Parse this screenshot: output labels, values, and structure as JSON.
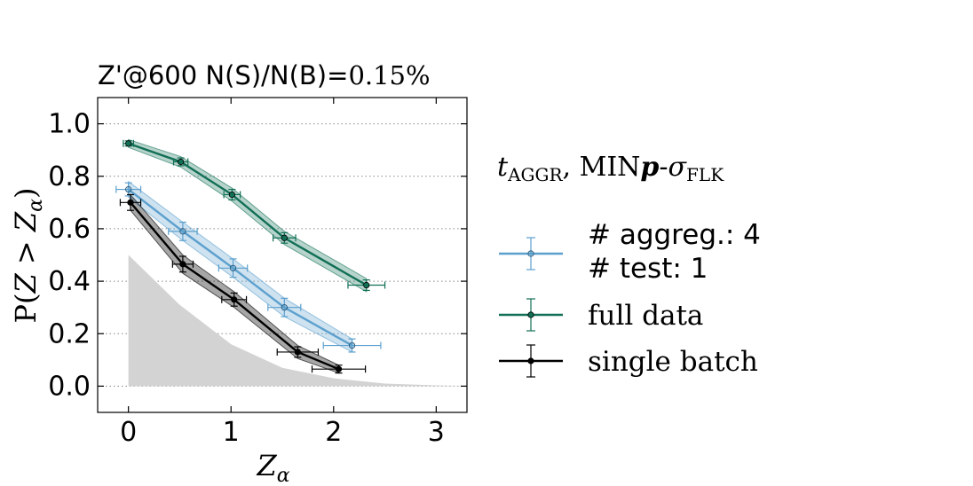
{
  "chart_data": {
    "type": "line",
    "title": "Z'@600 N(S)/N(B)=0.15%",
    "title_main": "Z'@600 N(S)/N(B)=",
    "title_pct": "0.15%",
    "xlabel_base": "Z",
    "xlabel_sub": "α",
    "ylabel": "P(Z > Zα)",
    "ylabel_pre": "P(",
    "ylabel_z": "Z",
    "ylabel_gt": " > ",
    "ylabel_z2": "Z",
    "ylabel_sub": "α",
    "ylabel_post": ")",
    "xlim": [
      -0.3,
      3.3
    ],
    "ylim": [
      -0.1,
      1.1
    ],
    "xticks": [
      0,
      1,
      2,
      3
    ],
    "xtick_labels": [
      "0",
      "1",
      "2",
      "3"
    ],
    "yticks": [
      0.0,
      0.2,
      0.4,
      0.6,
      0.8,
      1.0
    ],
    "ytick_labels": [
      "0.0",
      "0.2",
      "0.4",
      "0.6",
      "0.8",
      "1.0"
    ],
    "grid": "horizontal-dotted",
    "legend": {
      "placement": "right, outside",
      "heading_t": "t",
      "heading_t_sub": "AGGR",
      "heading_mid": ", MIN",
      "heading_p": "p",
      "heading_dash": "-",
      "heading_sigma": "σ",
      "heading_sigma_sub": "FLK",
      "entries": [
        "# aggreg.: 4",
        "# test: 1",
        "full data",
        "single batch"
      ]
    },
    "null_distribution": {
      "x": [
        0,
        0.5,
        1.0,
        1.5,
        2.0,
        2.5,
        3.0,
        3.3
      ],
      "y": [
        0.5,
        0.31,
        0.16,
        0.07,
        0.03,
        0.01,
        0.003,
        0.001
      ],
      "color": "#d3d3d3"
    },
    "series": [
      {
        "name": "# aggreg.: 4 # test: 1",
        "color": "#5ca0ce",
        "x": [
          0.0,
          0.53,
          1.02,
          1.52,
          2.18
        ],
        "y": [
          0.75,
          0.59,
          0.45,
          0.3,
          0.155
        ],
        "xerr": [
          0.12,
          0.14,
          0.14,
          0.16,
          0.28
        ],
        "yerr": [
          0.025,
          0.035,
          0.035,
          0.035,
          0.025
        ],
        "band_lo": [
          0.72,
          0.555,
          0.415,
          0.265,
          0.13
        ],
        "band_hi": [
          0.78,
          0.625,
          0.485,
          0.335,
          0.18
        ]
      },
      {
        "name": "full data",
        "color": "#116f55",
        "x": [
          0.0,
          0.51,
          1.01,
          1.52,
          2.32
        ],
        "y": [
          0.925,
          0.855,
          0.73,
          0.565,
          0.385
        ],
        "xerr": [
          0.05,
          0.07,
          0.08,
          0.11,
          0.18
        ],
        "yerr": [
          0.01,
          0.015,
          0.02,
          0.02,
          0.02
        ],
        "band_lo": [
          0.91,
          0.835,
          0.705,
          0.54,
          0.36
        ],
        "band_hi": [
          0.94,
          0.875,
          0.755,
          0.59,
          0.41
        ]
      },
      {
        "name": "single batch",
        "color": "#000000",
        "x": [
          0.02,
          0.53,
          1.03,
          1.65,
          2.05
        ],
        "y": [
          0.7,
          0.465,
          0.33,
          0.13,
          0.065
        ],
        "xerr": [
          0.1,
          0.1,
          0.12,
          0.2,
          0.26
        ],
        "yerr": [
          0.03,
          0.03,
          0.025,
          0.02,
          0.015
        ],
        "band_lo": [
          0.67,
          0.43,
          0.3,
          0.105,
          0.05
        ],
        "band_hi": [
          0.73,
          0.5,
          0.36,
          0.155,
          0.08
        ]
      }
    ]
  }
}
